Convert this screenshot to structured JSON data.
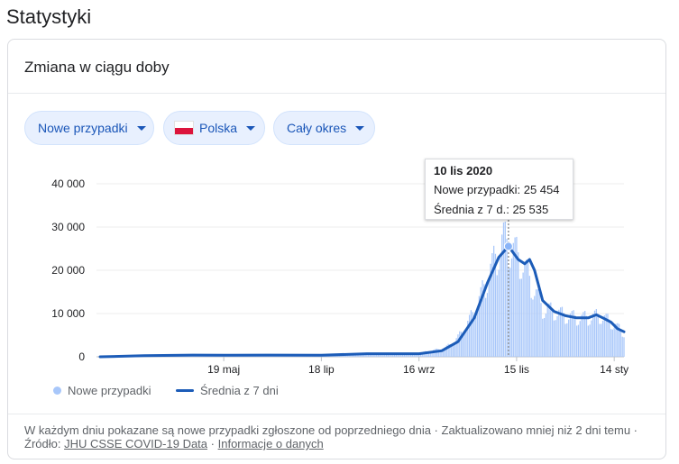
{
  "page_title": "Statystyki",
  "card": {
    "title": "Zmiana w ciągu doby"
  },
  "filters": {
    "metric": "Nowe przypadki",
    "country": "Polska",
    "period": "Cały okres"
  },
  "colors": {
    "bars": "#a8c7fa",
    "line": "#1c5cb8",
    "chip_bg": "#e8f0fe",
    "chip_text": "#1a56b8",
    "flag_red": "#dc143c"
  },
  "tooltip": {
    "date": "10 lis 2020",
    "new_cases_label": "Nowe przypadki: 25 454",
    "avg_label": "Średnia z 7 d.: 25 535"
  },
  "legend": {
    "bars": "Nowe przypadki",
    "line": "Średnia z 7 dni"
  },
  "footer": {
    "text": "W każdym dniu pokazane są nowe przypadki zgłoszone od poprzedniego dnia · Zaktualizowano mniej niż 2 dni temu",
    "source_prefix": "Źródło:",
    "source_link": "JHU CSSE COVID-19 Data",
    "info_link": "Informacje o danych"
  },
  "chart_data": {
    "type": "bar",
    "title": "",
    "xlabel": "",
    "ylabel": "",
    "ylim": [
      0,
      40000
    ],
    "y_ticks": [
      {
        "value": 0,
        "label": "0"
      },
      {
        "value": 10000,
        "label": "10 000"
      },
      {
        "value": 20000,
        "label": "20 000"
      },
      {
        "value": 30000,
        "label": "30 000"
      },
      {
        "value": 40000,
        "label": "40 000"
      }
    ],
    "x_range": [
      "2020-03-04",
      "2021-01-20"
    ],
    "x_ticks": [
      {
        "date": "2020-05-19",
        "label": "19 maj"
      },
      {
        "date": "2020-07-18",
        "label": "18 lip"
      },
      {
        "date": "2020-09-16",
        "label": "16 wrz"
      },
      {
        "date": "2020-11-15",
        "label": "15 lis"
      },
      {
        "date": "2021-01-14",
        "label": "14 sty"
      }
    ],
    "highlight": {
      "date": "2020-11-10",
      "new_cases": 25454,
      "avg_7d": 25535
    },
    "series": [
      {
        "name": "Nowe przypadki",
        "kind": "bar",
        "daily_points": [
          [
            "2020-03-04",
            0
          ],
          [
            "2020-03-20",
            100
          ],
          [
            "2020-04-01",
            300
          ],
          [
            "2020-04-15",
            400
          ],
          [
            "2020-05-01",
            350
          ],
          [
            "2020-05-19",
            400
          ],
          [
            "2020-06-05",
            450
          ],
          [
            "2020-06-20",
            350
          ],
          [
            "2020-07-05",
            300
          ],
          [
            "2020-07-18",
            400
          ],
          [
            "2020-08-01",
            600
          ],
          [
            "2020-08-15",
            800
          ],
          [
            "2020-08-31",
            700
          ],
          [
            "2020-09-16",
            800
          ],
          [
            "2020-09-25",
            1500
          ],
          [
            "2020-10-01",
            1800
          ],
          [
            "2020-10-08",
            3500
          ],
          [
            "2020-10-15",
            7000
          ],
          [
            "2020-10-22",
            12000
          ],
          [
            "2020-10-29",
            19000
          ],
          [
            "2020-11-04",
            24500
          ],
          [
            "2020-11-07",
            27000
          ],
          [
            "2020-11-10",
            25454
          ],
          [
            "2020-11-14",
            24000
          ],
          [
            "2020-11-18",
            22000
          ],
          [
            "2020-11-24",
            17000
          ],
          [
            "2020-12-01",
            11000
          ],
          [
            "2020-12-08",
            10500
          ],
          [
            "2020-12-15",
            9500
          ],
          [
            "2020-12-22",
            9000
          ],
          [
            "2020-12-29",
            9000
          ],
          [
            "2021-01-05",
            9500
          ],
          [
            "2021-01-12",
            8000
          ],
          [
            "2021-01-20",
            5500
          ]
        ]
      },
      {
        "name": "Średnia z 7 dni",
        "kind": "line",
        "points": [
          [
            "2020-03-04",
            0
          ],
          [
            "2020-03-31",
            250
          ],
          [
            "2020-04-30",
            400
          ],
          [
            "2020-05-19",
            350
          ],
          [
            "2020-06-15",
            400
          ],
          [
            "2020-07-18",
            350
          ],
          [
            "2020-08-15",
            700
          ],
          [
            "2020-09-16",
            700
          ],
          [
            "2020-09-30",
            1400
          ],
          [
            "2020-10-10",
            3500
          ],
          [
            "2020-10-20",
            9000
          ],
          [
            "2020-10-28",
            17000
          ],
          [
            "2020-11-04",
            23000
          ],
          [
            "2020-11-10",
            25535
          ],
          [
            "2020-11-16",
            22500
          ],
          [
            "2020-11-20",
            21500
          ],
          [
            "2020-11-23",
            22500
          ],
          [
            "2020-11-26",
            20000
          ],
          [
            "2020-12-01",
            13000
          ],
          [
            "2020-12-08",
            10500
          ],
          [
            "2020-12-15",
            9500
          ],
          [
            "2020-12-22",
            9000
          ],
          [
            "2020-12-29",
            9000
          ],
          [
            "2021-01-03",
            9700
          ],
          [
            "2021-01-07",
            9000
          ],
          [
            "2021-01-12",
            8000
          ],
          [
            "2021-01-16",
            6500
          ],
          [
            "2021-01-20",
            5800
          ]
        ]
      }
    ]
  }
}
